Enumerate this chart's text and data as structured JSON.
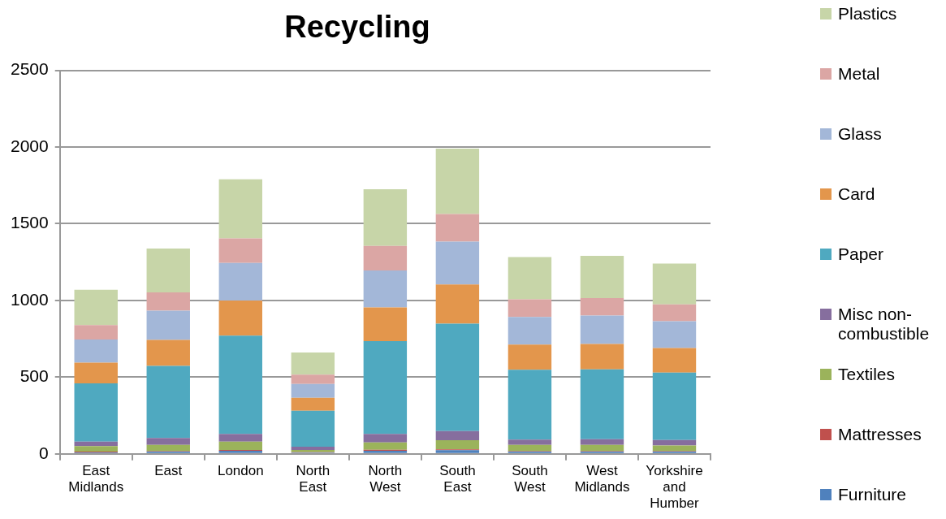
{
  "chart_data": {
    "type": "bar",
    "title": "Recycling",
    "stacked": true,
    "grid": "y",
    "legend": "right",
    "categories": [
      "East Midlands",
      "East",
      "London",
      "North East",
      "North West",
      "South East",
      "South West",
      "West Midlands",
      "Yorkshire and Humber"
    ],
    "ylim": [
      0,
      2500
    ],
    "yticks": [
      0,
      500,
      1000,
      1500,
      2000,
      2500
    ],
    "series": [
      {
        "name": "Furniture",
        "color": "#4f81bd",
        "values": [
          10,
          15,
          20,
          8,
          20,
          24,
          15,
          15,
          15
        ]
      },
      {
        "name": "Mattresses",
        "color": "#c0504d",
        "values": [
          5,
          3,
          5,
          3,
          7,
          5,
          3,
          3,
          3
        ]
      },
      {
        "name": "Textiles",
        "color": "#9bb35b",
        "values": [
          35,
          40,
          55,
          15,
          48,
          60,
          40,
          40,
          37
        ]
      },
      {
        "name": "Misc non-combustible",
        "color": "#866e9e",
        "values": [
          30,
          45,
          50,
          20,
          55,
          60,
          35,
          38,
          35
        ]
      },
      {
        "name": "Paper",
        "color": "#4fa9c0",
        "values": [
          380,
          470,
          640,
          235,
          605,
          700,
          455,
          455,
          440
        ]
      },
      {
        "name": "Card",
        "color": "#e3964c",
        "values": [
          135,
          170,
          230,
          85,
          220,
          255,
          165,
          165,
          160
        ]
      },
      {
        "name": "Glass",
        "color": "#a3b7d8",
        "values": [
          150,
          190,
          245,
          90,
          240,
          280,
          180,
          185,
          175
        ]
      },
      {
        "name": "Metal",
        "color": "#dba6a4",
        "values": [
          95,
          120,
          160,
          60,
          160,
          180,
          115,
          115,
          110
        ]
      },
      {
        "name": "Plastics",
        "color": "#c7d5a8",
        "values": [
          230,
          285,
          385,
          145,
          370,
          425,
          275,
          275,
          265
        ]
      }
    ]
  }
}
